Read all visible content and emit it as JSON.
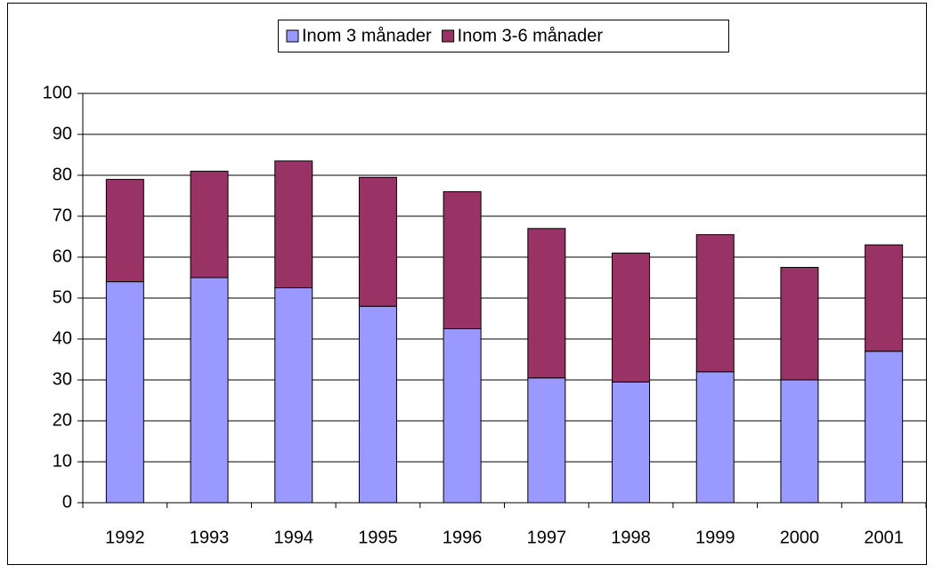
{
  "chart_data": {
    "type": "stacked-bar",
    "categories": [
      "1992",
      "1993",
      "1994",
      "1995",
      "1996",
      "1997",
      "1998",
      "1999",
      "2000",
      "2001"
    ],
    "series": [
      {
        "name": "Inom 3 månader",
        "color": "#9999ff",
        "values": [
          54,
          55,
          52.5,
          48,
          42.5,
          30.5,
          29.5,
          32,
          30,
          37
        ]
      },
      {
        "name": "Inom 3-6 månader",
        "color": "#993366",
        "values": [
          25,
          26,
          31,
          31.5,
          33.5,
          36.5,
          31.5,
          33.5,
          27.5,
          26
        ]
      }
    ],
    "ylim": [
      0,
      100
    ],
    "yticks": [
      0,
      10,
      20,
      30,
      40,
      50,
      60,
      70,
      80,
      90,
      100
    ],
    "grid": true,
    "legend": "top"
  }
}
